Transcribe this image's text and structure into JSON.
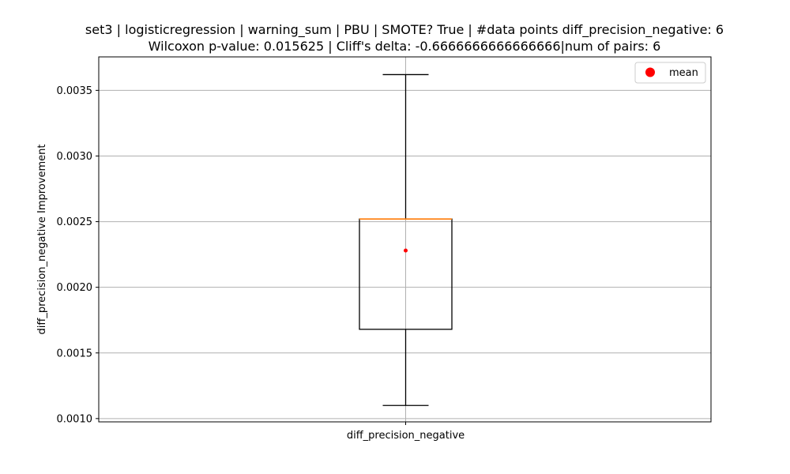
{
  "chart_data": {
    "type": "boxplot",
    "title_line1": "set3 | logisticregression | warning_sum | PBU | SMOTE? True | #data points diff_precision_negative: 6",
    "title_line2": "Wilcoxon p-value: 0.015625 | Cliff's delta: -0.6666666666666666|num of pairs: 6",
    "ylabel": "diff_precision_negative Improvement",
    "categories": [
      "diff_precision_negative"
    ],
    "ylim": [
      0.000975,
      0.003755
    ],
    "yticks": [
      0.001,
      0.0015,
      0.002,
      0.0025,
      0.003,
      0.0035
    ],
    "ytick_labels": [
      "0.0010",
      "0.0015",
      "0.0020",
      "0.0025",
      "0.0030",
      "0.0035"
    ],
    "grid": true,
    "box": {
      "whisker_low": 0.0011,
      "q1": 0.00168,
      "median": 0.00252,
      "q3": 0.00252,
      "whisker_high": 0.00362,
      "mean": 0.00228
    },
    "legend": {
      "label": "mean",
      "placement": "top-right"
    },
    "colors": {
      "median": "#ff7f0e",
      "mean": "#ff0000",
      "box": "#000000",
      "grid": "#b0b0b0"
    }
  }
}
